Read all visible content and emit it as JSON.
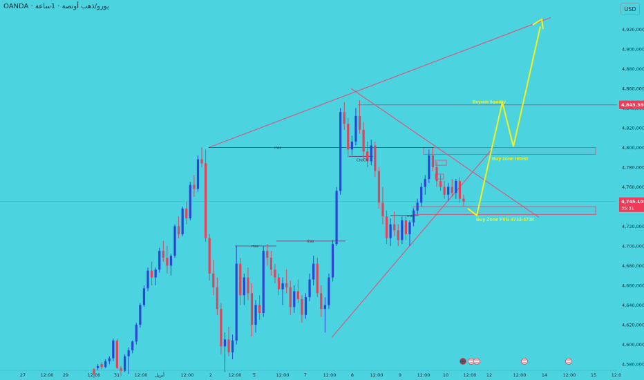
{
  "symbol": "OANDA",
  "symbol_subtitle": "· يورو/ذهب أونصة · 1ساعة",
  "currency": "USD",
  "colors": {
    "background": "#4cd3e0",
    "up_candle": "#2945d6",
    "down_candle": "#e0435a",
    "trend_line": "#d65a80",
    "structure_line": "#7a2b5a",
    "projection": "#f4f11a",
    "annotation_text": "#f4f11a",
    "zone_border": "#d65a80",
    "price_tag": "#ef3b58",
    "axis_text": "#1d2b36"
  },
  "chart_data": {
    "type": "candlestick",
    "y_axis": {
      "ticks": [
        "4,580,000",
        "4,600,000",
        "4,620,000",
        "4,640,000",
        "4,660,000",
        "4,680,000",
        "4,700,000",
        "4,720,000",
        "4,740,000",
        "4,760,000",
        "4,780,000",
        "4,800,000",
        "4,820,000",
        "4,840,000",
        "4,860,000",
        "4,880,000",
        "4,900,000",
        "4,920,000"
      ],
      "range": [
        4575,
        4935
      ]
    },
    "x_axis": {
      "ticks": [
        "27",
        "12:00",
        "29",
        "12:00",
        "31",
        "12:00",
        "أبريل",
        "12:00",
        "2",
        "12:00",
        "5",
        "12:00",
        "7",
        "12:00",
        "8",
        "12:00",
        "9",
        "12:00",
        "10",
        "12:00",
        "12",
        "12:00",
        "14",
        "12:00",
        "15",
        "12:0"
      ]
    },
    "current_price": {
      "label": "4,745.105",
      "countdown": "35:31"
    },
    "liquidity_price": {
      "label": "4,843.386",
      "value": 4843.4
    },
    "annotations": {
      "buyside_liquidity": "Buyside liquidity",
      "buy_zone_retest": "Buy zone retest",
      "buy_zone_fvg": "Buy Zone FVG 4733-4738",
      "choch": "ChoCH",
      "mss": [
        "mss",
        "mss",
        "mss",
        "mss"
      ]
    },
    "zones": {
      "upper": [
        4793,
        4800
      ],
      "lower": [
        4732,
        4740
      ]
    },
    "candles": [
      [
        4575,
        4576,
        4566,
        4570
      ],
      [
        4576,
        4580,
        4574,
        4578
      ],
      [
        4580,
        4582,
        4575,
        4577
      ],
      [
        4577,
        4585,
        4576,
        4583
      ],
      [
        4583,
        4588,
        4580,
        4586
      ],
      [
        4586,
        4606,
        4583,
        4604
      ],
      [
        4604,
        4606,
        4575,
        4576
      ],
      [
        4576,
        4578,
        4568,
        4573
      ],
      [
        4573,
        4590,
        4572,
        4588
      ],
      [
        4588,
        4597,
        4570,
        4594
      ],
      [
        4594,
        4604,
        4591,
        4603
      ],
      [
        4603,
        4622,
        4600,
        4620
      ],
      [
        4620,
        4642,
        4617,
        4640
      ],
      [
        4640,
        4660,
        4638,
        4657
      ],
      [
        4657,
        4678,
        4654,
        4675
      ],
      [
        4675,
        4684,
        4660,
        4668
      ],
      [
        4668,
        4678,
        4660,
        4676
      ],
      [
        4676,
        4698,
        4673,
        4695
      ],
      [
        4695,
        4705,
        4684,
        4688
      ],
      [
        4688,
        4700,
        4672,
        4680
      ],
      [
        4680,
        4692,
        4670,
        4690
      ],
      [
        4690,
        4722,
        4688,
        4720
      ],
      [
        4720,
        4730,
        4708,
        4712
      ],
      [
        4712,
        4740,
        4710,
        4738
      ],
      [
        4738,
        4745,
        4722,
        4728
      ],
      [
        4728,
        4765,
        4726,
        4762
      ],
      [
        4762,
        4772,
        4750,
        4758
      ],
      [
        4758,
        4792,
        4755,
        4788
      ],
      [
        4788,
        4800,
        4780,
        4784
      ],
      [
        4784,
        4798,
        4704,
        4708
      ],
      [
        4708,
        4712,
        4665,
        4672
      ],
      [
        4672,
        4686,
        4650,
        4658
      ],
      [
        4658,
        4668,
        4630,
        4636
      ],
      [
        4636,
        4642,
        4590,
        4598
      ],
      [
        4598,
        4612,
        4572,
        4605
      ],
      [
        4605,
        4618,
        4588,
        4592
      ],
      [
        4592,
        4610,
        4585,
        4604
      ],
      [
        4604,
        4700,
        4600,
        4682
      ],
      [
        4682,
        4688,
        4640,
        4650
      ],
      [
        4650,
        4672,
        4640,
        4668
      ],
      [
        4668,
        4678,
        4645,
        4652
      ],
      [
        4652,
        4662,
        4608,
        4620
      ],
      [
        4620,
        4645,
        4612,
        4640
      ],
      [
        4640,
        4650,
        4625,
        4632
      ],
      [
        4632,
        4700,
        4628,
        4695
      ],
      [
        4695,
        4702,
        4680,
        4688
      ],
      [
        4688,
        4695,
        4670,
        4676
      ],
      [
        4676,
        4682,
        4662,
        4668
      ],
      [
        4668,
        4672,
        4650,
        4656
      ],
      [
        4656,
        4668,
        4640,
        4662
      ],
      [
        4662,
        4676,
        4652,
        4658
      ],
      [
        4658,
        4665,
        4630,
        4638
      ],
      [
        4638,
        4660,
        4632,
        4654
      ],
      [
        4654,
        4666,
        4642,
        4646
      ],
      [
        4646,
        4650,
        4622,
        4630
      ],
      [
        4630,
        4652,
        4626,
        4648
      ],
      [
        4648,
        4672,
        4644,
        4666
      ],
      [
        4666,
        4690,
        4660,
        4682
      ],
      [
        4682,
        4688,
        4648,
        4652
      ],
      [
        4652,
        4660,
        4628,
        4636
      ],
      [
        4636,
        4648,
        4612,
        4640
      ],
      [
        4640,
        4672,
        4636,
        4668
      ],
      [
        4668,
        4706,
        4664,
        4702
      ],
      [
        4702,
        4760,
        4700,
        4756
      ],
      [
        4756,
        4840,
        4752,
        4836
      ],
      [
        4836,
        4846,
        4818,
        4824
      ],
      [
        4824,
        4830,
        4790,
        4798
      ],
      [
        4798,
        4812,
        4792,
        4806
      ],
      [
        4806,
        4840,
        4802,
        4832
      ],
      [
        4832,
        4848,
        4814,
        4818
      ],
      [
        4818,
        4826,
        4788,
        4796
      ],
      [
        4796,
        4806,
        4780,
        4786
      ],
      [
        4786,
        4808,
        4782,
        4802
      ],
      [
        4802,
        4806,
        4770,
        4776
      ],
      [
        4776,
        4780,
        4738,
        4744
      ],
      [
        4744,
        4760,
        4722,
        4730
      ],
      [
        4730,
        4736,
        4702,
        4708
      ],
      [
        4708,
        4728,
        4700,
        4722
      ],
      [
        4722,
        4735,
        4710,
        4716
      ],
      [
        4716,
        4722,
        4700,
        4706
      ],
      [
        4706,
        4730,
        4702,
        4726
      ],
      [
        4726,
        4732,
        4706,
        4712
      ],
      [
        4712,
        4726,
        4700,
        4724
      ],
      [
        4724,
        4738,
        4720,
        4736
      ],
      [
        4736,
        4748,
        4732,
        4744
      ],
      [
        4744,
        4764,
        4740,
        4760
      ],
      [
        4760,
        4772,
        4752,
        4768
      ],
      [
        4768,
        4798,
        4764,
        4792
      ],
      [
        4792,
        4800,
        4776,
        4780
      ],
      [
        4780,
        4786,
        4760,
        4766
      ],
      [
        4766,
        4772,
        4756,
        4760
      ],
      [
        4760,
        4766,
        4748,
        4752
      ],
      [
        4752,
        4764,
        4746,
        4760
      ],
      [
        4760,
        4768,
        4750,
        4754
      ],
      [
        4754,
        4768,
        4748,
        4766
      ],
      [
        4766,
        4770,
        4744,
        4748
      ],
      [
        4748,
        4752,
        4740,
        4745
      ]
    ]
  }
}
